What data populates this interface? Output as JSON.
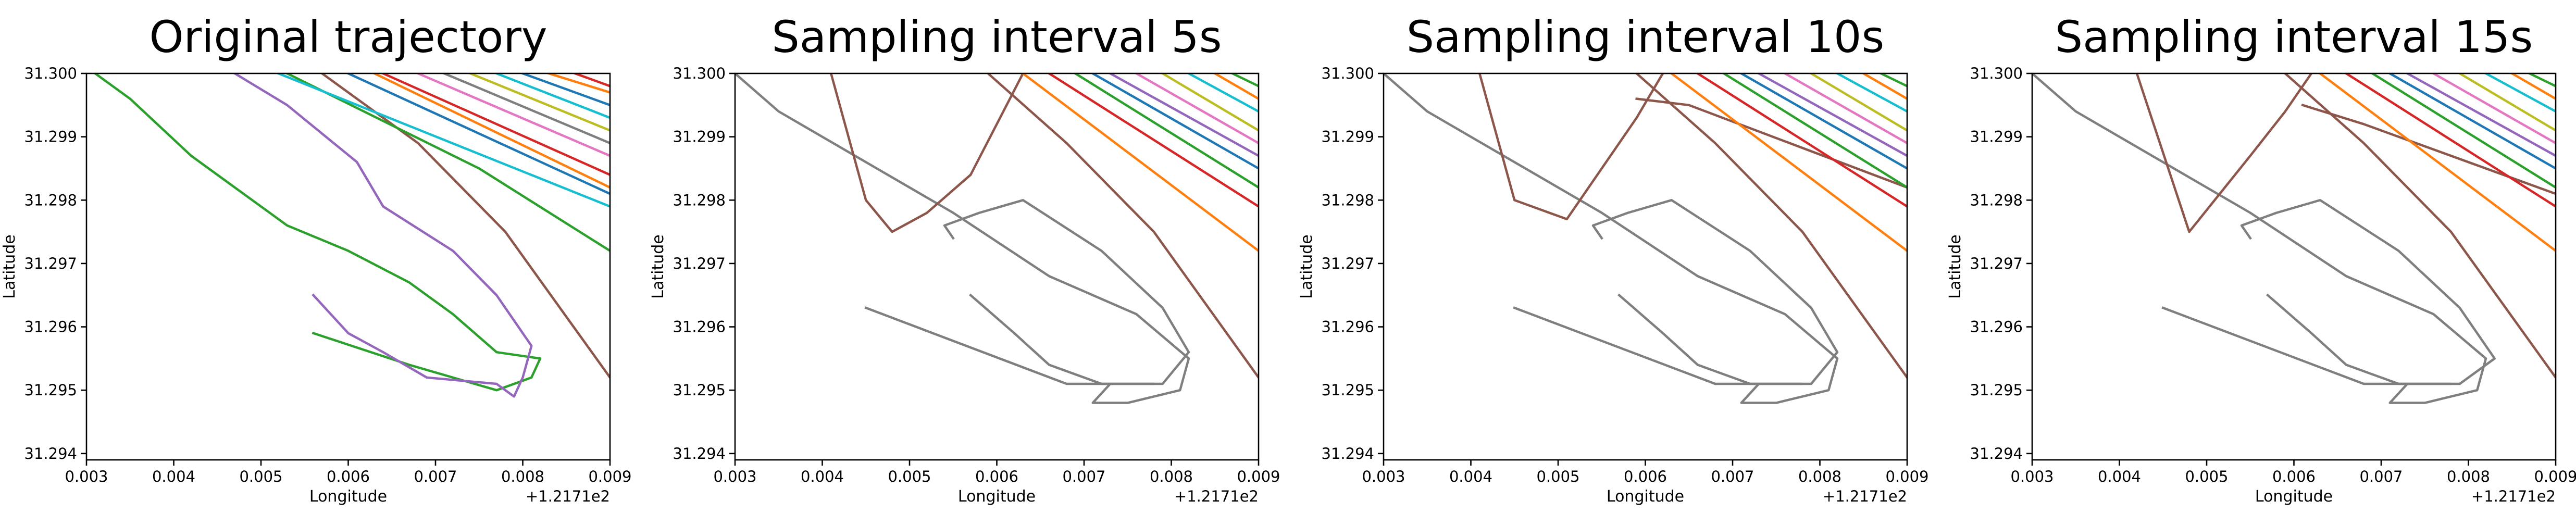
{
  "chart_data": [
    {
      "type": "line",
      "title": "Original trajectory",
      "xlabel": "Longitude",
      "ylabel": "Latitude",
      "x_offset_label": "+1.2171e2",
      "xlim": [
        0.003,
        0.009
      ],
      "ylim": [
        31.2939,
        31.3
      ],
      "xticks": [
        0.003,
        0.004,
        0.005,
        0.006,
        0.007,
        0.008,
        0.009
      ],
      "yticks": [
        31.294,
        31.295,
        31.296,
        31.297,
        31.298,
        31.299,
        {
          "value": 31.3,
          "label": "31.300"
        }
      ],
      "series": [
        {
          "color": "#2ca02c",
          "x": [
            0.0031,
            0.0035,
            0.0042,
            0.005,
            0.0053,
            0.006,
            0.0067,
            0.0072,
            0.0077,
            0.0082,
            0.0081,
            0.0077,
            0.0067,
            0.0056
          ],
          "values": [
            31.3,
            31.2996,
            31.2987,
            31.2979,
            31.2976,
            31.2972,
            31.2967,
            31.2962,
            31.2956,
            31.2955,
            31.2952,
            31.295,
            31.2954,
            31.2959
          ]
        },
        {
          "color": "#9467bd",
          "x": [
            0.0047,
            0.0053,
            0.0061,
            0.0064,
            0.0072,
            0.0077,
            0.0081,
            0.008,
            0.0079,
            0.0077,
            0.0069,
            0.0064,
            0.006,
            0.0056
          ],
          "values": [
            31.3,
            31.2995,
            31.2986,
            31.2979,
            31.2972,
            31.2965,
            31.2957,
            31.2952,
            31.2949,
            31.2951,
            31.2952,
            31.2956,
            31.2959,
            31.2965
          ]
        },
        {
          "color": "#8c564b",
          "x": [
            0.0057,
            0.0068,
            0.0078,
            0.009
          ],
          "values": [
            31.3,
            31.2989,
            31.2975,
            31.2952
          ]
        },
        {
          "color": "#2ca02c",
          "x": [
            0.0053,
            0.0075,
            0.009
          ],
          "values": [
            31.3,
            31.2985,
            31.2972
          ]
        },
        {
          "color": "#17becf",
          "x": [
            0.0052,
            0.009
          ],
          "values": [
            31.3,
            31.2979
          ]
        },
        {
          "color": "#ff7f0e",
          "x": [
            0.0063,
            0.009
          ],
          "values": [
            31.3,
            31.2982
          ]
        },
        {
          "color": "#1f77b4",
          "x": [
            0.006,
            0.009
          ],
          "values": [
            31.3,
            31.2981
          ]
        },
        {
          "color": "#d62728",
          "x": [
            0.0064,
            0.009
          ],
          "values": [
            31.3,
            31.2984
          ]
        },
        {
          "color": "#e377c2",
          "x": [
            0.0068,
            0.009
          ],
          "values": [
            31.3,
            31.2987
          ]
        },
        {
          "color": "#7f7f7f",
          "x": [
            0.0071,
            0.009
          ],
          "values": [
            31.3,
            31.2989
          ]
        },
        {
          "color": "#bcbd22",
          "x": [
            0.0074,
            0.009
          ],
          "values": [
            31.3,
            31.2991
          ]
        },
        {
          "color": "#17becf",
          "x": [
            0.0077,
            0.009
          ],
          "values": [
            31.3,
            31.2993
          ]
        },
        {
          "color": "#1f77b4",
          "x": [
            0.008,
            0.009
          ],
          "values": [
            31.3,
            31.2995
          ]
        },
        {
          "color": "#ff7f0e",
          "x": [
            0.0083,
            0.009
          ],
          "values": [
            31.3,
            31.2997
          ]
        },
        {
          "color": "#d62728",
          "x": [
            0.0086,
            0.009
          ],
          "values": [
            31.3,
            31.2998
          ]
        }
      ]
    },
    {
      "type": "line",
      "title": "Sampling interval 5s",
      "xlabel": "Longitude",
      "ylabel": "Latitude",
      "x_offset_label": "+1.2171e2",
      "xlim": [
        0.003,
        0.009
      ],
      "ylim": [
        31.2939,
        31.3
      ],
      "xticks": [
        0.003,
        0.004,
        0.005,
        0.006,
        0.007,
        0.008,
        0.009
      ],
      "yticks": [
        31.294,
        31.295,
        31.296,
        31.297,
        31.298,
        31.299,
        {
          "value": 31.3,
          "label": "31.300"
        }
      ],
      "series": [
        {
          "color": "#7f7f7f",
          "x": [
            0.003,
            0.0035,
            0.0045,
            0.0055,
            0.0066,
            0.0076,
            0.0082,
            0.0081,
            0.0075,
            0.0071,
            0.0073,
            0.0078,
            0.0072,
            0.0066,
            0.0062,
            0.0057
          ],
          "values": [
            31.3,
            31.2994,
            31.2986,
            31.2978,
            31.2968,
            31.2962,
            31.2955,
            31.295,
            31.2948,
            31.2948,
            31.2951,
            31.2951,
            31.2951,
            31.2954,
            31.2959,
            31.2965
          ]
        },
        {
          "color": "#7f7f7f",
          "x": [
            0.0055,
            0.0054,
            0.0058,
            0.0063,
            0.0072,
            0.0079,
            0.0082,
            0.0079,
            0.0068,
            0.0045
          ],
          "values": [
            31.2974,
            31.2976,
            31.2978,
            31.298,
            31.2972,
            31.2963,
            31.2956,
            31.2951,
            31.2951,
            31.2963
          ]
        },
        {
          "color": "#8c564b",
          "x": [
            0.0041,
            0.0045,
            0.0048,
            0.0052,
            0.0057,
            0.0063
          ],
          "values": [
            31.3,
            31.298,
            31.2975,
            31.2978,
            31.2984,
            31.3
          ]
        },
        {
          "color": "#8c564b",
          "x": [
            0.0059,
            0.0068,
            0.0078,
            0.009
          ],
          "values": [
            31.3,
            31.2989,
            31.2975,
            31.2952
          ]
        },
        {
          "color": "#ff7f0e",
          "x": [
            0.0063,
            0.009
          ],
          "values": [
            31.3,
            31.2972
          ]
        },
        {
          "color": "#d62728",
          "x": [
            0.0066,
            0.009
          ],
          "values": [
            31.3,
            31.2979
          ]
        },
        {
          "color": "#2ca02c",
          "x": [
            0.0069,
            0.009
          ],
          "values": [
            31.3,
            31.2982
          ]
        },
        {
          "color": "#1f77b4",
          "x": [
            0.0071,
            0.009
          ],
          "values": [
            31.3,
            31.2985
          ]
        },
        {
          "color": "#9467bd",
          "x": [
            0.0073,
            0.009
          ],
          "values": [
            31.3,
            31.2987
          ]
        },
        {
          "color": "#e377c2",
          "x": [
            0.0076,
            0.009
          ],
          "values": [
            31.3,
            31.2989
          ]
        },
        {
          "color": "#bcbd22",
          "x": [
            0.0079,
            0.009
          ],
          "values": [
            31.3,
            31.2991
          ]
        },
        {
          "color": "#17becf",
          "x": [
            0.0082,
            0.009
          ],
          "values": [
            31.3,
            31.2994
          ]
        },
        {
          "color": "#ff7f0e",
          "x": [
            0.0085,
            0.009
          ],
          "values": [
            31.3,
            31.2996
          ]
        },
        {
          "color": "#2ca02c",
          "x": [
            0.0087,
            0.009
          ],
          "values": [
            31.3,
            31.2998
          ]
        }
      ]
    },
    {
      "type": "line",
      "title": "Sampling interval 10s",
      "xlabel": "Longitude",
      "ylabel": "Latitude",
      "x_offset_label": "+1.2171e2",
      "xlim": [
        0.003,
        0.009
      ],
      "ylim": [
        31.2939,
        31.3
      ],
      "xticks": [
        0.003,
        0.004,
        0.005,
        0.006,
        0.007,
        0.008,
        0.009
      ],
      "yticks": [
        31.294,
        31.295,
        31.296,
        31.297,
        31.298,
        31.299,
        {
          "value": 31.3,
          "label": "31.300"
        }
      ],
      "series": [
        {
          "color": "#7f7f7f",
          "x": [
            0.003,
            0.0035,
            0.0045,
            0.0055,
            0.0066,
            0.0076,
            0.0082,
            0.0081,
            0.0075,
            0.0071,
            0.0073,
            0.0078,
            0.0072,
            0.0066,
            0.0062,
            0.0057
          ],
          "values": [
            31.3,
            31.2994,
            31.2986,
            31.2978,
            31.2968,
            31.2962,
            31.2955,
            31.295,
            31.2948,
            31.2948,
            31.2951,
            31.2951,
            31.2951,
            31.2954,
            31.2959,
            31.2965
          ]
        },
        {
          "color": "#7f7f7f",
          "x": [
            0.0055,
            0.0054,
            0.0058,
            0.0063,
            0.0072,
            0.0079,
            0.0082,
            0.0079,
            0.0068,
            0.0045
          ],
          "values": [
            31.2974,
            31.2976,
            31.2978,
            31.298,
            31.2972,
            31.2963,
            31.2956,
            31.2951,
            31.2951,
            31.2963
          ]
        },
        {
          "color": "#8c564b",
          "x": [
            0.0041,
            0.0045,
            0.0051,
            0.0059,
            0.0062
          ],
          "values": [
            31.3,
            31.298,
            31.2977,
            31.2993,
            31.3
          ]
        },
        {
          "color": "#8c564b",
          "x": [
            0.0059,
            0.0068,
            0.0078,
            0.009
          ],
          "values": [
            31.3,
            31.2989,
            31.2975,
            31.2952
          ]
        },
        {
          "color": "#8c564b",
          "x": [
            0.0059,
            0.0065,
            0.009
          ],
          "values": [
            31.2996,
            31.2995,
            31.2982
          ]
        },
        {
          "color": "#ff7f0e",
          "x": [
            0.0063,
            0.009
          ],
          "values": [
            31.3,
            31.2972
          ]
        },
        {
          "color": "#d62728",
          "x": [
            0.0066,
            0.009
          ],
          "values": [
            31.3,
            31.2979
          ]
        },
        {
          "color": "#2ca02c",
          "x": [
            0.0069,
            0.009
          ],
          "values": [
            31.3,
            31.2982
          ]
        },
        {
          "color": "#1f77b4",
          "x": [
            0.0071,
            0.009
          ],
          "values": [
            31.3,
            31.2985
          ]
        },
        {
          "color": "#9467bd",
          "x": [
            0.0073,
            0.009
          ],
          "values": [
            31.3,
            31.2987
          ]
        },
        {
          "color": "#e377c2",
          "x": [
            0.0076,
            0.009
          ],
          "values": [
            31.3,
            31.2989
          ]
        },
        {
          "color": "#bcbd22",
          "x": [
            0.0079,
            0.009
          ],
          "values": [
            31.3,
            31.2991
          ]
        },
        {
          "color": "#17becf",
          "x": [
            0.0082,
            0.009
          ],
          "values": [
            31.3,
            31.2994
          ]
        },
        {
          "color": "#ff7f0e",
          "x": [
            0.0085,
            0.009
          ],
          "values": [
            31.3,
            31.2996
          ]
        },
        {
          "color": "#2ca02c",
          "x": [
            0.0087,
            0.009
          ],
          "values": [
            31.3,
            31.2998
          ]
        }
      ]
    },
    {
      "type": "line",
      "title": "Sampling interval 15s",
      "xlabel": "Longitude",
      "ylabel": "Latitude",
      "x_offset_label": "+1.2171e2",
      "xlim": [
        0.003,
        0.009
      ],
      "ylim": [
        31.2939,
        31.3
      ],
      "xticks": [
        0.003,
        0.004,
        0.005,
        0.006,
        0.007,
        0.008,
        0.009
      ],
      "yticks": [
        31.294,
        31.295,
        31.296,
        31.297,
        31.298,
        31.299,
        {
          "value": 31.3,
          "label": "31.300"
        }
      ],
      "series": [
        {
          "color": "#7f7f7f",
          "x": [
            0.003,
            0.0035,
            0.0045,
            0.0055,
            0.0066,
            0.0076,
            0.0082,
            0.0081,
            0.0075,
            0.0071,
            0.0073,
            0.0078,
            0.0072,
            0.0066,
            0.0062,
            0.0057
          ],
          "values": [
            31.3,
            31.2994,
            31.2986,
            31.2978,
            31.2968,
            31.2962,
            31.2955,
            31.295,
            31.2948,
            31.2948,
            31.2951,
            31.2951,
            31.2951,
            31.2954,
            31.2959,
            31.2965
          ]
        },
        {
          "color": "#7f7f7f",
          "x": [
            0.0055,
            0.0054,
            0.0058,
            0.0063,
            0.0072,
            0.0079,
            0.0083,
            0.0079,
            0.0068,
            0.0045
          ],
          "values": [
            31.2974,
            31.2976,
            31.2978,
            31.298,
            31.2972,
            31.2963,
            31.2955,
            31.2951,
            31.2951,
            31.2963
          ]
        },
        {
          "color": "#8c564b",
          "x": [
            0.0042,
            0.0048,
            0.0055,
            0.0059,
            0.0062
          ],
          "values": [
            31.3,
            31.2975,
            31.2987,
            31.2994,
            31.3
          ]
        },
        {
          "color": "#8c564b",
          "x": [
            0.0059,
            0.0068,
            0.0078,
            0.009
          ],
          "values": [
            31.3,
            31.2989,
            31.2975,
            31.2952
          ]
        },
        {
          "color": "#8c564b",
          "x": [
            0.0061,
            0.0068,
            0.009
          ],
          "values": [
            31.2995,
            31.2992,
            31.2981
          ]
        },
        {
          "color": "#ff7f0e",
          "x": [
            0.0063,
            0.009
          ],
          "values": [
            31.3,
            31.2972
          ]
        },
        {
          "color": "#d62728",
          "x": [
            0.0066,
            0.009
          ],
          "values": [
            31.3,
            31.2979
          ]
        },
        {
          "color": "#2ca02c",
          "x": [
            0.0069,
            0.009
          ],
          "values": [
            31.3,
            31.2982
          ]
        },
        {
          "color": "#1f77b4",
          "x": [
            0.0071,
            0.009
          ],
          "values": [
            31.3,
            31.2985
          ]
        },
        {
          "color": "#9467bd",
          "x": [
            0.0073,
            0.009
          ],
          "values": [
            31.3,
            31.2987
          ]
        },
        {
          "color": "#e377c2",
          "x": [
            0.0076,
            0.009
          ],
          "values": [
            31.3,
            31.2989
          ]
        },
        {
          "color": "#bcbd22",
          "x": [
            0.0079,
            0.009
          ],
          "values": [
            31.3,
            31.2991
          ]
        },
        {
          "color": "#17becf",
          "x": [
            0.0082,
            0.009
          ],
          "values": [
            31.3,
            31.2994
          ]
        },
        {
          "color": "#ff7f0e",
          "x": [
            0.0085,
            0.009
          ],
          "values": [
            31.3,
            31.2996
          ]
        },
        {
          "color": "#2ca02c",
          "x": [
            0.0087,
            0.009
          ],
          "values": [
            31.3,
            31.2998
          ]
        }
      ]
    }
  ]
}
